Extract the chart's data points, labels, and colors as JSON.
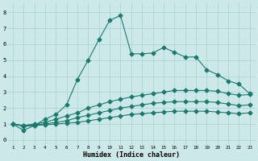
{
  "x": [
    1,
    2,
    3,
    4,
    5,
    6,
    7,
    8,
    9,
    10,
    11,
    12,
    13,
    14,
    15,
    16,
    17,
    18,
    19,
    20,
    21,
    22,
    23
  ],
  "line1": [
    1.0,
    0.6,
    0.9,
    1.3,
    1.6,
    2.2,
    3.8,
    5.0,
    6.3,
    7.5,
    7.8,
    5.4,
    5.4,
    5.45,
    5.8,
    5.5,
    5.2,
    5.2,
    4.4,
    4.1,
    3.7,
    3.5,
    2.9
  ],
  "line2": [
    1.0,
    0.9,
    1.0,
    1.1,
    1.3,
    1.5,
    1.7,
    2.0,
    2.2,
    2.4,
    2.55,
    2.7,
    2.8,
    2.9,
    3.0,
    3.1,
    3.1,
    3.1,
    3.1,
    3.05,
    2.9,
    2.8,
    2.85
  ],
  "line3": [
    1.0,
    0.9,
    0.95,
    1.0,
    1.1,
    1.2,
    1.4,
    1.55,
    1.7,
    1.85,
    2.0,
    2.1,
    2.2,
    2.3,
    2.35,
    2.4,
    2.4,
    2.4,
    2.4,
    2.35,
    2.25,
    2.15,
    2.2
  ],
  "line4": [
    1.0,
    0.85,
    0.9,
    0.95,
    1.0,
    1.05,
    1.1,
    1.2,
    1.3,
    1.4,
    1.5,
    1.6,
    1.65,
    1.7,
    1.75,
    1.8,
    1.8,
    1.8,
    1.8,
    1.75,
    1.7,
    1.65,
    1.7
  ],
  "bg_color": "#cce8e8",
  "line_color": "#1a7a6e",
  "grid_color": "#aad0d0",
  "xlabel": "Humidex (Indice chaleur)",
  "ylim": [
    -0.3,
    8.6
  ],
  "xlim": [
    0.5,
    23.5
  ],
  "yticks": [
    0,
    1,
    2,
    3,
    4,
    5,
    6,
    7,
    8
  ],
  "xticks": [
    1,
    2,
    3,
    4,
    5,
    6,
    7,
    8,
    9,
    10,
    11,
    12,
    13,
    14,
    15,
    16,
    17,
    18,
    19,
    20,
    21,
    22,
    23
  ]
}
